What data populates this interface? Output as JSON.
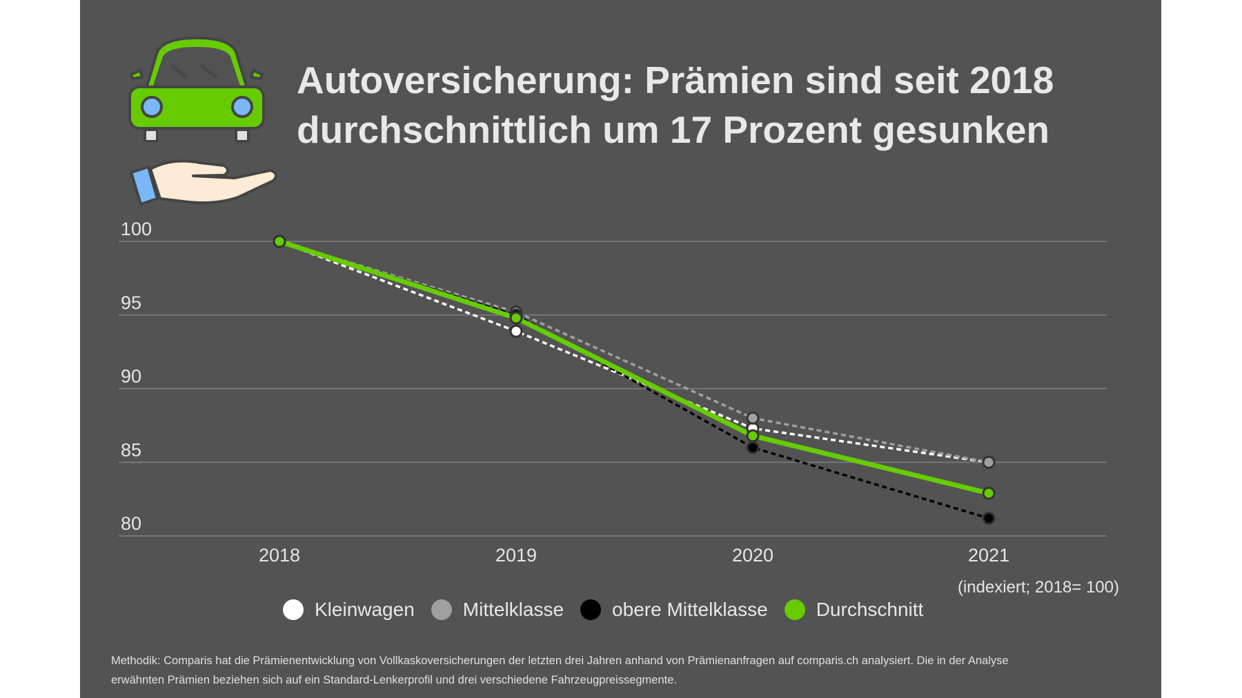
{
  "title": {
    "line1": "Autoversicherung: Prämien sind seit 2018",
    "line2": "durchschnittlich um 17 Prozent gesunken"
  },
  "icon": "car-on-hand-icon",
  "note": "(indexiert; 2018= 100)",
  "footer": {
    "line1": "Methodik: Comparis hat die Prämienentwicklung von Vollkaskoversicherungen der letzten drei Jahren anhand von Prämienanfragen auf comparis.ch analysiert. Die in der Analyse",
    "line2": "erwähnten Prämien beziehen sich auf ein Standard-Lenkerprofil und drei verschiedene Fahrzeugpreissegmente."
  },
  "chart_data": {
    "type": "line",
    "title": "Autoversicherung: Prämien sind seit 2018 durchschnittlich um 17 Prozent gesunken",
    "x": [
      "2018",
      "2019",
      "2020",
      "2021"
    ],
    "ylim": [
      80,
      100
    ],
    "yticks": [
      "100",
      "95",
      "90",
      "85",
      "80"
    ],
    "grid": true,
    "legend_position": "bottom",
    "series": [
      {
        "name": "Kleinwagen",
        "values": [
          100,
          93.9,
          87.3,
          85.0
        ],
        "color": "#ffffff",
        "dashed": true
      },
      {
        "name": "Mittelklasse",
        "values": [
          100,
          95.2,
          88.0,
          85.0
        ],
        "color": "#a0a0a0",
        "dashed": true
      },
      {
        "name": "obere Mittelklasse",
        "values": [
          100,
          95.0,
          86.0,
          81.2
        ],
        "color": "#000000",
        "dashed": true
      },
      {
        "name": "Durchschnitt",
        "values": [
          100,
          94.8,
          86.8,
          82.9
        ],
        "color": "#66cc00",
        "dashed": false
      }
    ]
  }
}
